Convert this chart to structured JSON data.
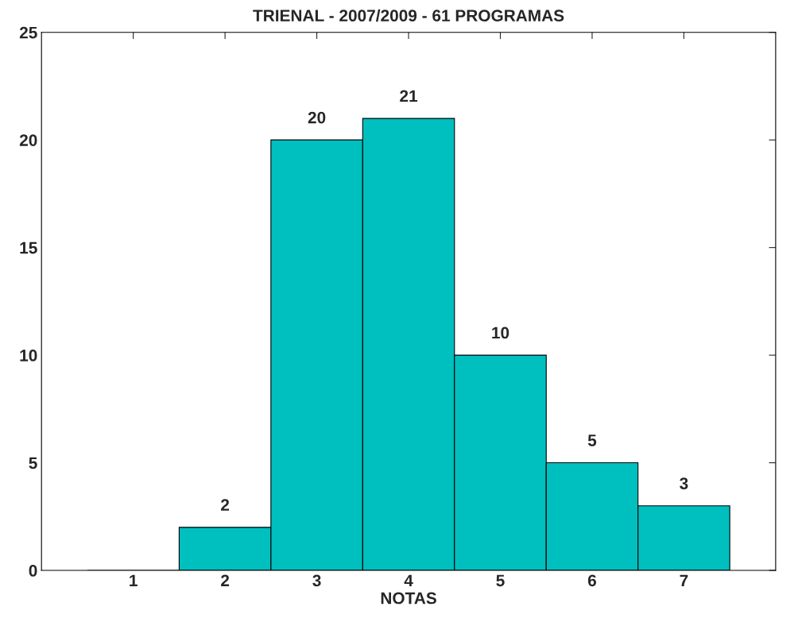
{
  "chart_data": {
    "type": "histogram",
    "title": "TRIENAL - 2007/2009 - 61 PROGRAMAS",
    "xlabel": "NOTAS",
    "bins": [
      0.5,
      1.5,
      2.5,
      3.5,
      4.5,
      5.5,
      6.5,
      7.5
    ],
    "values": [
      0,
      2,
      20,
      21,
      10,
      5,
      3
    ],
    "value_labels": [
      null,
      "2",
      "20",
      "21",
      "10",
      "5",
      "3"
    ],
    "color": "#00bfbf",
    "xlim": [
      0,
      8
    ],
    "xticks": [
      1,
      2,
      3,
      4,
      5,
      6,
      7
    ],
    "ylim": [
      0,
      25
    ],
    "yticks": [
      0,
      5,
      10,
      15,
      20,
      25
    ],
    "grid": false
  }
}
